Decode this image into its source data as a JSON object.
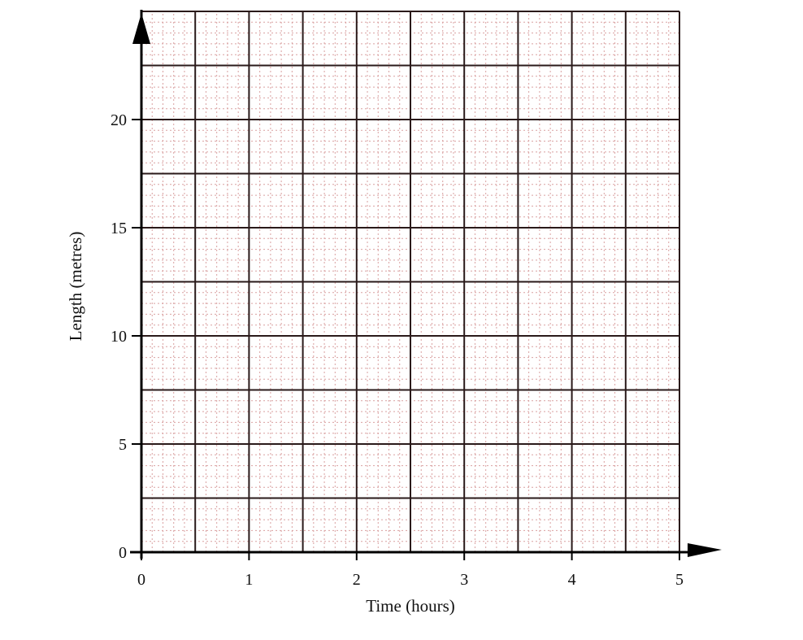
{
  "chart_data": {
    "type": "line",
    "title": "",
    "xlabel": "Time (hours)",
    "ylabel": "Length (metres)",
    "xlim": [
      0,
      5
    ],
    "ylim": [
      0,
      25
    ],
    "x_ticks": [
      "0",
      "1",
      "2",
      "3",
      "4",
      "5"
    ],
    "y_ticks": [
      "0",
      "5",
      "10",
      "15",
      "20"
    ],
    "grid": true,
    "grid_major_x_step": 0.5,
    "grid_major_y_step": 2.5,
    "grid_minor_x_step": 0.1,
    "grid_minor_y_step": 0.5,
    "series": [],
    "colors": {
      "major_grid": "#2a1a1a",
      "minor_grid": "#d9a0a0",
      "axis": "#000000"
    }
  }
}
